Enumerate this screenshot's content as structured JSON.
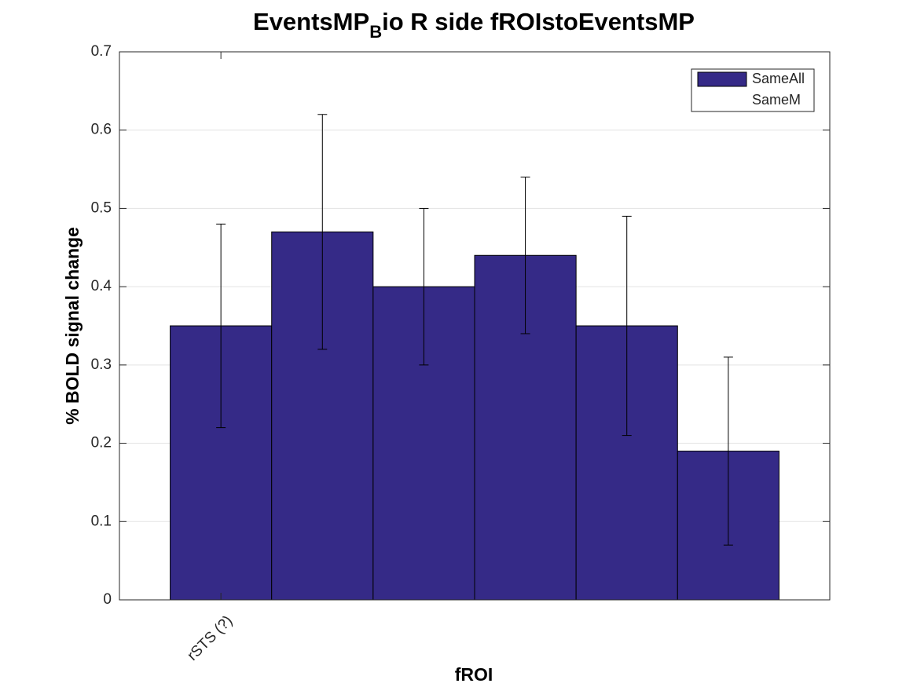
{
  "chart_data": {
    "type": "bar",
    "title": [
      "EventsMP",
      "B",
      "io R side fROIstoEventsMP"
    ],
    "xlabel": "fROI",
    "ylabel": "% BOLD signal change",
    "categories": [
      "rSTS (?)",
      null,
      null,
      null,
      null,
      null
    ],
    "series": [
      {
        "name": "SameAll",
        "color": "#352a87",
        "values": [
          0.35,
          0.47,
          0.4,
          0.44,
          0.35,
          0.19
        ],
        "errors": [
          0.13,
          0.15,
          0.1,
          0.1,
          0.14,
          0.12
        ]
      },
      {
        "name": "SameM",
        "color": "none",
        "values": [
          null,
          null,
          null,
          null,
          null,
          null
        ]
      }
    ],
    "ylim": [
      0,
      0.7
    ],
    "yticks": [
      0,
      0.1,
      0.2,
      0.3,
      0.4,
      0.5,
      0.6,
      0.7
    ],
    "grid": true,
    "legend": "northeast"
  }
}
